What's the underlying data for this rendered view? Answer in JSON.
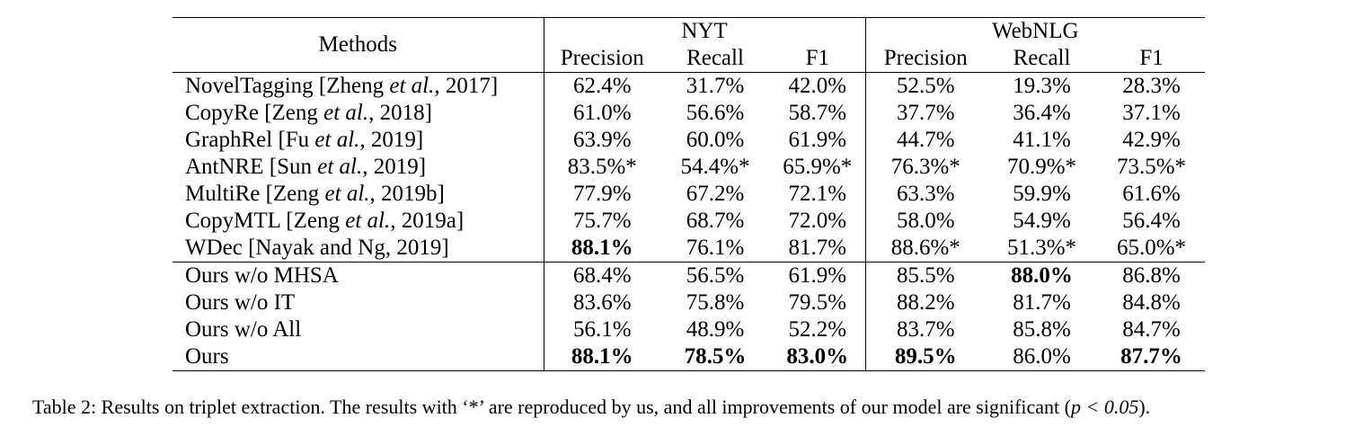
{
  "table": {
    "col_header": "Methods",
    "groups": [
      "NYT",
      "WebNLG"
    ],
    "metrics": [
      "Precision",
      "Recall",
      "F1"
    ],
    "rows_baselines": [
      {
        "method": "NovelTagging [Zheng ",
        "etal": "et al.",
        "year": ", 2017]",
        "values": [
          "62.4%",
          "31.7%",
          "42.0%",
          "52.5%",
          "19.3%",
          "28.3%"
        ],
        "bold": [
          false,
          false,
          false,
          false,
          false,
          false
        ]
      },
      {
        "method": "CopyRe [Zeng ",
        "etal": "et al.",
        "year": ", 2018]",
        "values": [
          "61.0%",
          "56.6%",
          "58.7%",
          "37.7%",
          "36.4%",
          "37.1%"
        ],
        "bold": [
          false,
          false,
          false,
          false,
          false,
          false
        ]
      },
      {
        "method": "GraphRel [Fu ",
        "etal": "et al.",
        "year": ", 2019]",
        "values": [
          "63.9%",
          "60.0%",
          "61.9%",
          "44.7%",
          "41.1%",
          "42.9%"
        ],
        "bold": [
          false,
          false,
          false,
          false,
          false,
          false
        ]
      },
      {
        "method": "AntNRE [Sun ",
        "etal": "et al.",
        "year": ", 2019]",
        "values": [
          "83.5%*",
          "54.4%*",
          "65.9%*",
          "76.3%*",
          "70.9%*",
          "73.5%*"
        ],
        "bold": [
          false,
          false,
          false,
          false,
          false,
          false
        ]
      },
      {
        "method": "MultiRe [Zeng ",
        "etal": "et al.",
        "year": ", 2019b]",
        "values": [
          "77.9%",
          "67.2%",
          "72.1%",
          "63.3%",
          "59.9%",
          "61.6%"
        ],
        "bold": [
          false,
          false,
          false,
          false,
          false,
          false
        ]
      },
      {
        "method": "CopyMTL [Zeng ",
        "etal": "et al.",
        "year": ", 2019a]",
        "values": [
          "75.7%",
          "68.7%",
          "72.0%",
          "58.0%",
          "54.9%",
          "56.4%"
        ],
        "bold": [
          false,
          false,
          false,
          false,
          false,
          false
        ]
      },
      {
        "method": "WDec [Nayak and Ng, 2019]",
        "etal": "",
        "year": "",
        "values": [
          "88.1%",
          "76.1%",
          "81.7%",
          "88.6%*",
          "51.3%*",
          "65.0%*"
        ],
        "bold": [
          true,
          false,
          false,
          false,
          false,
          false
        ]
      }
    ],
    "rows_ours": [
      {
        "method": "Ours w/o MHSA",
        "values": [
          "68.4%",
          "56.5%",
          "61.9%",
          "85.5%",
          "88.0%",
          "86.8%"
        ],
        "bold": [
          false,
          false,
          false,
          false,
          true,
          false
        ]
      },
      {
        "method": "Ours w/o IT",
        "values": [
          "83.6%",
          "75.8%",
          "79.5%",
          "88.2%",
          "81.7%",
          "84.8%"
        ],
        "bold": [
          false,
          false,
          false,
          false,
          false,
          false
        ]
      },
      {
        "method": "Ours w/o All",
        "values": [
          "56.1%",
          "48.9%",
          "52.2%",
          "83.7%",
          "85.8%",
          "84.7%"
        ],
        "bold": [
          false,
          false,
          false,
          false,
          false,
          false
        ]
      },
      {
        "method": "Ours",
        "values": [
          "88.1%",
          "78.5%",
          "83.0%",
          "89.5%",
          "86.0%",
          "87.7%"
        ],
        "bold": [
          true,
          true,
          true,
          true,
          false,
          true
        ]
      }
    ]
  },
  "caption": {
    "text_before": "Table 2: Results on triplet extraction. The results with ‘*’ are reproduced by us, and all improvements of our model are significant (",
    "math": "p < 0.05",
    "text_after": ")."
  }
}
